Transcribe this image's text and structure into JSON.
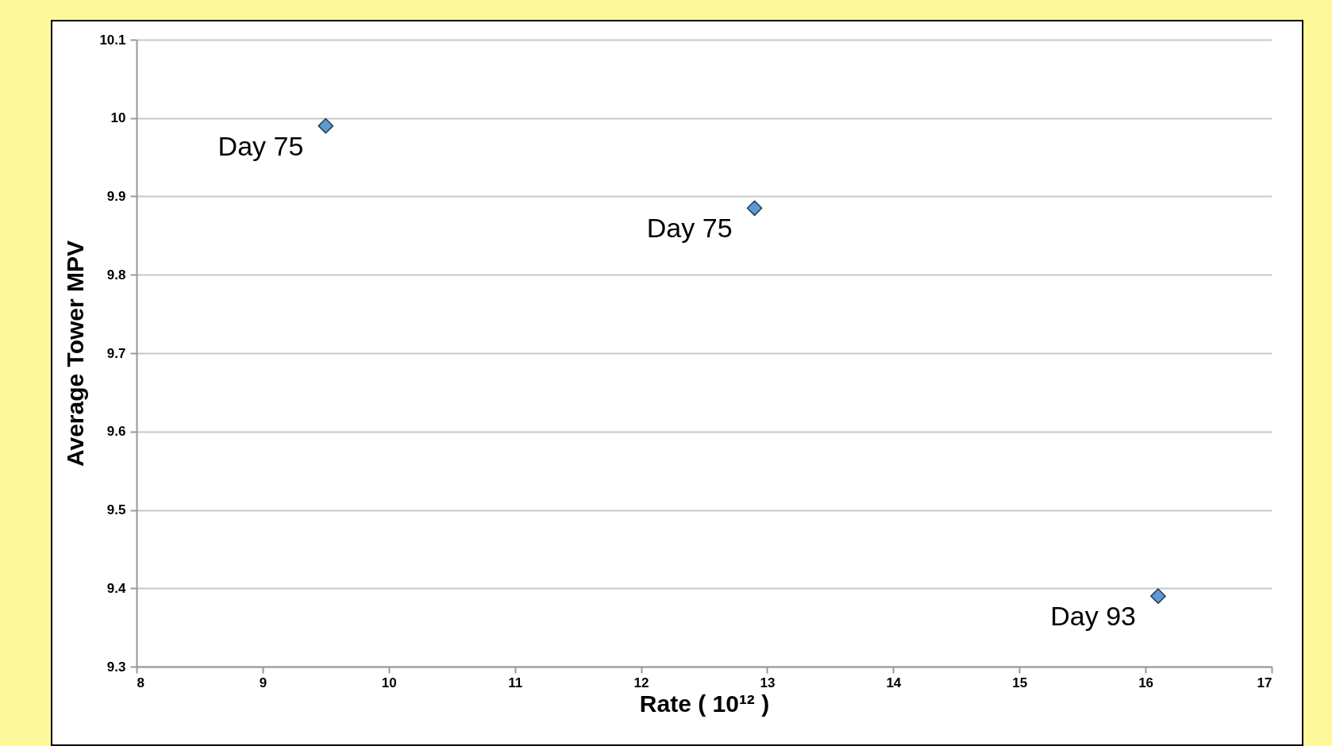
{
  "chart_data": {
    "type": "scatter",
    "xlabel": "Rate  ( 10¹² )",
    "ylabel": "Average Tower MPV",
    "x": [
      9.5,
      12.9,
      16.1
    ],
    "series": [
      {
        "color": "#5b9bd5",
        "values": [
          9.99,
          9.885,
          9.39
        ]
      }
    ],
    "xlim": [
      8,
      17
    ],
    "xticks": [
      8,
      9,
      10,
      11,
      12,
      13,
      14,
      15,
      16,
      17
    ],
    "ylim": [
      9.3,
      10.1
    ],
    "yticks": [
      9.3,
      9.4,
      9.5,
      9.6,
      9.7,
      9.8,
      9.9,
      10,
      10.1
    ],
    "grid": "y",
    "marker": "diamond",
    "annotations": [
      {
        "text": "Day 75",
        "x": 9.5,
        "y": 9.99
      },
      {
        "text": "Day 75",
        "x": 12.9,
        "y": 9.885
      },
      {
        "text": "Day 93",
        "x": 16.1,
        "y": 9.39
      }
    ]
  }
}
